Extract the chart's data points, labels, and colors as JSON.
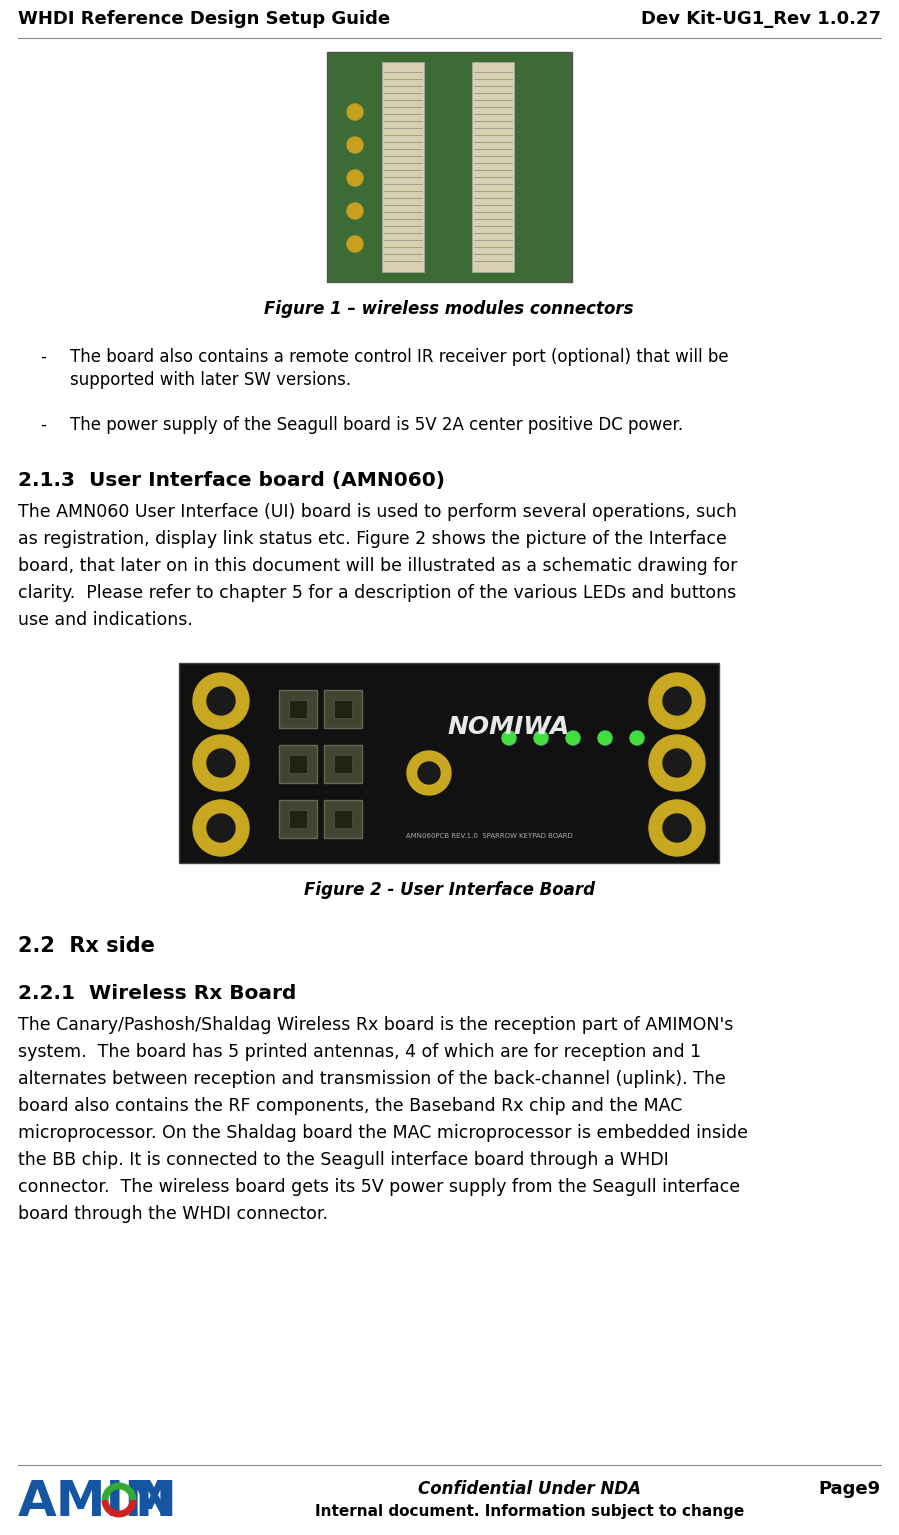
{
  "header_left": "WHDI Reference Design Setup Guide",
  "header_right": "Dev Kit-UG1_Rev 1.0.27",
  "figure1_caption": "Figure 1 – wireless modules connectors",
  "bullet1_line1": "The board also contains a remote control IR receiver port (optional) that will be",
  "bullet1_line2": "supported with later SW versions.",
  "bullet2": "The power supply of the Seagull board is 5V 2A center positive DC power.",
  "section_title": "2.1.3  User Interface board (AMN060)",
  "section_body_lines": [
    "The AMN060 User Interface (UI) board is used to perform several operations, such",
    "as registration, display link status etc. Figure 2 shows the picture of the Interface",
    "board, that later on in this document will be illustrated as a schematic drawing for",
    "clarity.  Please refer to chapter 5 for a description of the various LEDs and buttons",
    "use and indications."
  ],
  "figure2_caption": "Figure 2 - User Interface Board",
  "section2_title": "2.2  Rx side",
  "section22_title": "2.2.1  Wireless Rx Board",
  "section22_body_lines": [
    "The Canary/Pashosh/Shaldag Wireless Rx board is the reception part of AMIMON's",
    "system.  The board has 5 printed antennas, 4 of which are for reception and 1",
    "alternates between reception and transmission of the back-channel (uplink). The",
    "board also contains the RF components, the Baseband Rx chip and the MAC",
    "microprocessor. On the Shaldag board the MAC microprocessor is embedded inside",
    "the BB chip. It is connected to the Seagull interface board through a WHDI",
    "connector.  The wireless board gets its 5V power supply from the Seagull interface",
    "board through the WHDI connector."
  ],
  "footer_confidential": "Confidential Under NDA",
  "footer_internal": "Internal document. Information subject to change",
  "footer_page": "Page9",
  "bg_color": "#ffffff",
  "text_color": "#000000",
  "amimon_blue": "#1655a2",
  "amimon_green": "#33aa33",
  "amimon_red": "#cc2222"
}
